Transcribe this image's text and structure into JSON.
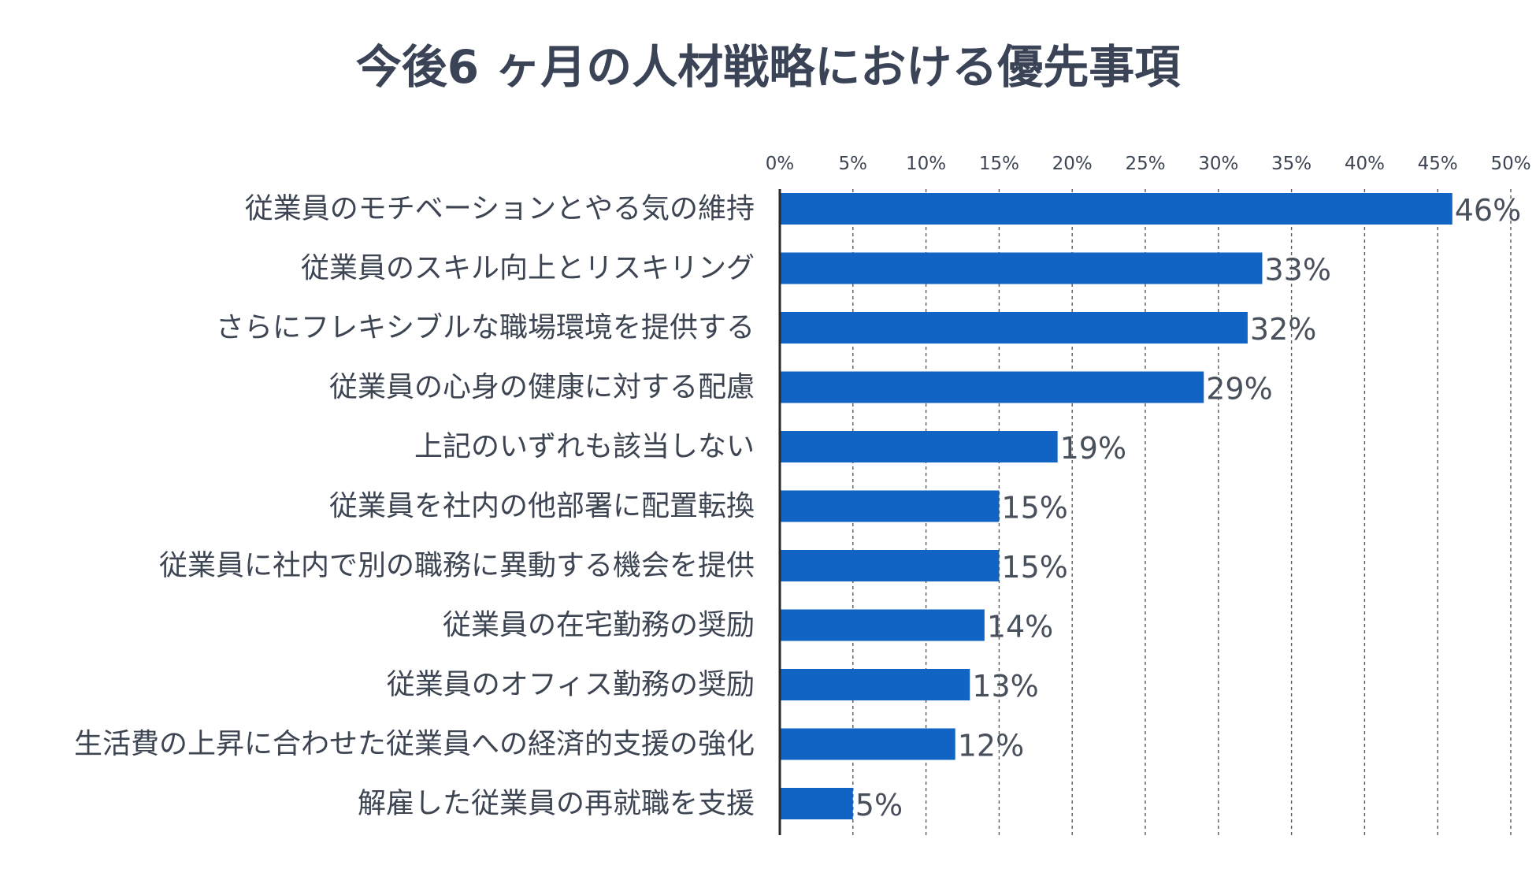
{
  "chart_data": {
    "type": "bar",
    "orientation": "horizontal",
    "title": "今後6 ヶ月の人材戦略における優先事項",
    "categories": [
      "従業員のモチベーションとやる気の維持",
      "従業員のスキル向上とリスキリング",
      "さらにフレキシブルな職場環境を提供する",
      "従業員の心身の健康に対する配慮",
      "上記のいずれも該当しない",
      "従業員を社内の他部署に配置転換",
      "従業員に社内で別の職務に異動する機会を提供",
      "従業員の在宅勤務の奨励",
      "従業員のオフィス勤務の奨励",
      "生活費の上昇に合わせた従業員への経済的支援の強化",
      "解雇した従業員の再就職を支援"
    ],
    "values": [
      46,
      33,
      32,
      29,
      19,
      15,
      15,
      14,
      13,
      12,
      5
    ],
    "value_labels": [
      "46%",
      "33%",
      "32%",
      "29%",
      "19%",
      "15%",
      "15%",
      "14%",
      "13%",
      "12%",
      "5%"
    ],
    "xlim": [
      0,
      50
    ],
    "x_ticks": [
      "0%",
      "5%",
      "10%",
      "15%",
      "20%",
      "25%",
      "30%",
      "35%",
      "40%",
      "45%",
      "50%"
    ],
    "x_axis_position": "top",
    "grid": true,
    "bar_color": "#1164c3",
    "title_color": "#3a4456",
    "text_color": "#3d4553"
  }
}
